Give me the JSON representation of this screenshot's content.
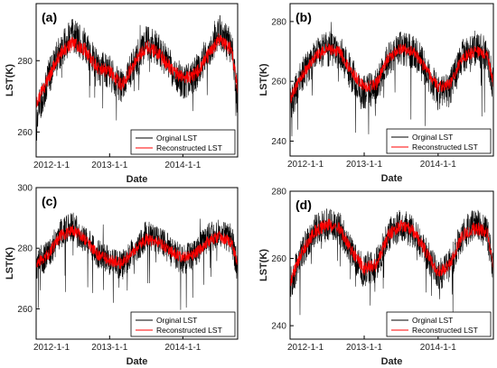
{
  "colors": {
    "original": "#000000",
    "reconstructed": "#ff0000",
    "frame": "#000000"
  },
  "chart_data": [
    {
      "type": "line",
      "panel_label": "(a)",
      "xlabel": "Date",
      "ylabel": "LST(K)",
      "xticks": [
        "2012-1-1",
        "2013-1-1",
        "2014-1-1"
      ],
      "xlim": [
        "2012-1-1",
        "2014-10-1"
      ],
      "yticks": [
        260,
        280
      ],
      "ylim": [
        253,
        296
      ],
      "legend_position": "bottom-right",
      "series": [
        {
          "name": "Orginal LST",
          "color": "#000000",
          "x": [
            "2012-1-1",
            "2012-3-1",
            "2012-5-1",
            "2012-7-1",
            "2012-9-1",
            "2012-11-1",
            "2013-1-1",
            "2013-3-1",
            "2013-5-1",
            "2013-7-1",
            "2013-9-1",
            "2013-11-1",
            "2014-1-1",
            "2014-3-1",
            "2014-5-1",
            "2014-7-1",
            "2014-9-1",
            "2014-10-1"
          ],
          "values": [
            264,
            275,
            283,
            287,
            284,
            278,
            277,
            272,
            279,
            285,
            283,
            278,
            274,
            276,
            282,
            288,
            284,
            270
          ]
        },
        {
          "name": "Reconstructed LST",
          "color": "#ff0000",
          "x": [
            "2012-1-1",
            "2012-3-1",
            "2012-5-1",
            "2012-7-1",
            "2012-9-1",
            "2012-11-1",
            "2013-1-1",
            "2013-3-1",
            "2013-5-1",
            "2013-7-1",
            "2013-9-1",
            "2013-11-1",
            "2014-1-1",
            "2014-3-1",
            "2014-5-1",
            "2014-7-1",
            "2014-9-1",
            "2014-10-1"
          ],
          "values": [
            268,
            275,
            282,
            285,
            283,
            278,
            277,
            273,
            279,
            284,
            282,
            278,
            275,
            276,
            281,
            286,
            283,
            272
          ]
        }
      ]
    },
    {
      "type": "line",
      "panel_label": "(b)",
      "xlabel": "Date",
      "ylabel": "LST(K)",
      "xticks": [
        "2012-1-1",
        "2013-1-1",
        "2014-1-1"
      ],
      "xlim": [
        "2012-1-1",
        "2014-10-1"
      ],
      "yticks": [
        240,
        260,
        280
      ],
      "ylim": [
        235,
        286
      ],
      "legend_position": "bottom-right",
      "series": [
        {
          "name": "Orginal LST",
          "color": "#000000",
          "x": [
            "2012-1-1",
            "2012-3-1",
            "2012-5-1",
            "2012-7-1",
            "2012-9-1",
            "2012-11-1",
            "2013-1-1",
            "2013-3-1",
            "2013-5-1",
            "2013-7-1",
            "2013-9-1",
            "2013-11-1",
            "2014-1-1",
            "2014-3-1",
            "2014-5-1",
            "2014-7-1",
            "2014-9-1",
            "2014-10-1"
          ],
          "values": [
            252,
            262,
            268,
            271,
            270,
            262,
            256,
            258,
            268,
            271,
            270,
            264,
            256,
            258,
            268,
            271,
            269,
            258
          ]
        },
        {
          "name": "Reconstructed LST",
          "color": "#ff0000",
          "x": [
            "2012-1-1",
            "2012-3-1",
            "2012-5-1",
            "2012-7-1",
            "2012-9-1",
            "2012-11-1",
            "2013-1-1",
            "2013-3-1",
            "2013-5-1",
            "2013-7-1",
            "2013-9-1",
            "2013-11-1",
            "2014-1-1",
            "2014-3-1",
            "2014-5-1",
            "2014-7-1",
            "2014-9-1",
            "2014-10-1"
          ],
          "values": [
            254,
            262,
            268,
            271,
            270,
            263,
            258,
            259,
            268,
            271,
            270,
            264,
            258,
            259,
            268,
            270,
            269,
            259
          ]
        }
      ]
    },
    {
      "type": "line",
      "panel_label": "(c)",
      "xlabel": "Date",
      "ylabel": "LST(K)",
      "xticks": [
        "2012-1-1",
        "2013-1-1",
        "2014-1-1"
      ],
      "xlim": [
        "2012-1-1",
        "2014-10-1"
      ],
      "yticks": [
        260,
        280,
        300
      ],
      "ylim": [
        250,
        300
      ],
      "legend_position": "bottom-right",
      "series": [
        {
          "name": "Orginal LST",
          "color": "#000000",
          "x": [
            "2012-1-1",
            "2012-3-1",
            "2012-5-1",
            "2012-7-1",
            "2012-9-1",
            "2012-11-1",
            "2013-1-1",
            "2013-3-1",
            "2013-5-1",
            "2013-7-1",
            "2013-9-1",
            "2013-11-1",
            "2014-1-1",
            "2014-3-1",
            "2014-5-1",
            "2014-7-1",
            "2014-9-1",
            "2014-10-1"
          ],
          "values": [
            274,
            278,
            285,
            287,
            283,
            278,
            276,
            274,
            279,
            284,
            283,
            279,
            276,
            278,
            283,
            285,
            283,
            273
          ]
        },
        {
          "name": "Reconstructed LST",
          "color": "#ff0000",
          "x": [
            "2012-1-1",
            "2012-3-1",
            "2012-5-1",
            "2012-7-1",
            "2012-9-1",
            "2012-11-1",
            "2013-1-1",
            "2013-3-1",
            "2013-5-1",
            "2013-7-1",
            "2013-9-1",
            "2013-11-1",
            "2014-1-1",
            "2014-3-1",
            "2014-5-1",
            "2014-7-1",
            "2014-9-1",
            "2014-10-1"
          ],
          "values": [
            275,
            278,
            284,
            286,
            283,
            278,
            276,
            275,
            279,
            283,
            282,
            279,
            277,
            278,
            282,
            284,
            282,
            275
          ]
        }
      ]
    },
    {
      "type": "line",
      "panel_label": "(d)",
      "xlabel": "Date",
      "ylabel": "LST(K)",
      "xticks": [
        "2012-1-1",
        "2013-1-1",
        "2014-1-1"
      ],
      "xlim": [
        "2012-1-1",
        "2014-10-1"
      ],
      "yticks": [
        240,
        260,
        280
      ],
      "ylim": [
        236,
        280
      ],
      "legend_position": "bottom-right",
      "series": [
        {
          "name": "Orginal LST",
          "color": "#000000",
          "x": [
            "2012-1-1",
            "2012-3-1",
            "2012-5-1",
            "2012-7-1",
            "2012-9-1",
            "2012-11-1",
            "2013-1-1",
            "2013-3-1",
            "2013-5-1",
            "2013-7-1",
            "2013-9-1",
            "2013-11-1",
            "2014-1-1",
            "2014-3-1",
            "2014-5-1",
            "2014-7-1",
            "2014-9-1",
            "2014-10-1"
          ],
          "values": [
            252,
            262,
            268,
            270,
            269,
            262,
            256,
            258,
            267,
            270,
            268,
            262,
            255,
            258,
            267,
            270,
            268,
            256
          ]
        },
        {
          "name": "Reconstructed LST",
          "color": "#ff0000",
          "x": [
            "2012-1-1",
            "2012-3-1",
            "2012-5-1",
            "2012-7-1",
            "2012-9-1",
            "2012-11-1",
            "2013-1-1",
            "2013-3-1",
            "2013-5-1",
            "2013-7-1",
            "2013-9-1",
            "2013-11-1",
            "2014-1-1",
            "2014-3-1",
            "2014-5-1",
            "2014-7-1",
            "2014-9-1",
            "2014-10-1"
          ],
          "values": [
            253,
            262,
            268,
            270,
            269,
            262,
            257,
            258,
            267,
            270,
            268,
            262,
            256,
            258,
            267,
            269,
            268,
            257
          ]
        }
      ]
    }
  ]
}
